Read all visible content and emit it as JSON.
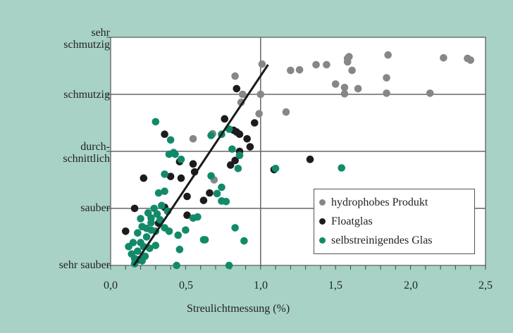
{
  "chart_data": {
    "type": "scatter",
    "title": "",
    "xlabel": "Streulichtmessung (%)",
    "ylabel": "",
    "xlim": [
      0,
      2.5
    ],
    "ylim": [
      0,
      4
    ],
    "x_ticks": [
      "0,0",
      "0,5",
      "1,0",
      "1,5",
      "2,0",
      "2,5"
    ],
    "y_ticks": [
      "sehr sauber",
      "sauber",
      "durch-\nschnittlich",
      "schmutzig",
      "sehr\nschmutzig"
    ],
    "grid": {
      "x_at": [
        1.0
      ],
      "y_at": [
        1,
        2,
        3
      ]
    },
    "legend_position": "lower right",
    "trendline": {
      "x": [
        0.155,
        1.05
      ],
      "y": [
        0,
        3.52
      ],
      "color": "#1a1a1a"
    },
    "series": [
      {
        "name": "hydrophobes Produkt",
        "color": "#858789",
        "points": [
          [
            0.83,
            3.32
          ],
          [
            0.88,
            3.0
          ],
          [
            0.87,
            2.86
          ],
          [
            1.0,
            3.0
          ],
          [
            1.01,
            3.53
          ],
          [
            0.99,
            2.66
          ],
          [
            0.55,
            2.22
          ],
          [
            0.68,
            2.31
          ],
          [
            0.69,
            1.5
          ],
          [
            1.17,
            2.69
          ],
          [
            1.2,
            3.42
          ],
          [
            1.26,
            3.43
          ],
          [
            1.37,
            3.52
          ],
          [
            1.44,
            3.52
          ],
          [
            1.5,
            3.18
          ],
          [
            1.56,
            3.12
          ],
          [
            1.56,
            3.01
          ],
          [
            1.58,
            3.63
          ],
          [
            1.59,
            3.66
          ],
          [
            1.58,
            3.57
          ],
          [
            1.61,
            3.42
          ],
          [
            1.65,
            3.1
          ],
          [
            1.84,
            3.29
          ],
          [
            1.84,
            3.02
          ],
          [
            1.85,
            3.69
          ],
          [
            2.13,
            3.02
          ],
          [
            2.22,
            3.64
          ],
          [
            2.38,
            3.63
          ],
          [
            2.4,
            3.6
          ]
        ]
      },
      {
        "name": "Floatglas",
        "color": "#1c1c1e",
        "points": [
          [
            0.1,
            0.6
          ],
          [
            0.16,
            1.0
          ],
          [
            0.22,
            1.53
          ],
          [
            0.32,
            0.74
          ],
          [
            0.36,
            1.02
          ],
          [
            0.36,
            2.3
          ],
          [
            0.4,
            1.56
          ],
          [
            0.46,
            1.82
          ],
          [
            0.47,
            1.53
          ],
          [
            0.51,
            1.21
          ],
          [
            0.55,
            1.78
          ],
          [
            0.56,
            1.64
          ],
          [
            0.51,
            0.88
          ],
          [
            0.62,
            1.14
          ],
          [
            0.66,
            1.27
          ],
          [
            0.8,
            1.76
          ],
          [
            0.82,
            2.37
          ],
          [
            0.84,
            2.34
          ],
          [
            0.86,
            2.3
          ],
          [
            0.91,
            2.22
          ],
          [
            0.86,
            2.0
          ],
          [
            0.93,
            2.08
          ],
          [
            0.96,
            2.5
          ],
          [
            0.76,
            2.57
          ],
          [
            0.84,
            3.1
          ],
          [
            1.09,
            1.68
          ],
          [
            1.33,
            1.86
          ],
          [
            0.83,
            1.84
          ],
          [
            0.19,
            0.1
          ]
        ]
      },
      {
        "name": "selbstreinigendes Glas",
        "color": "#128a6a",
        "points": [
          [
            0.3,
            2.52
          ],
          [
            0.36,
            1.6
          ],
          [
            0.34,
            1.05
          ],
          [
            0.32,
            1.27
          ],
          [
            0.36,
            1.3
          ],
          [
            0.4,
            2.2
          ],
          [
            0.42,
            1.98
          ],
          [
            0.39,
            1.95
          ],
          [
            0.43,
            1.95
          ],
          [
            0.47,
            1.86
          ],
          [
            0.38,
            0.95
          ],
          [
            0.15,
            0.4
          ],
          [
            0.14,
            0.2
          ],
          [
            0.18,
            0.25
          ],
          [
            0.22,
            0.33
          ],
          [
            0.23,
            0.16
          ],
          [
            0.21,
            0.08
          ],
          [
            0.16,
            0.03
          ],
          [
            0.12,
            0.33
          ],
          [
            0.2,
            0.4
          ],
          [
            0.24,
            0.5
          ],
          [
            0.27,
            0.75
          ],
          [
            0.25,
            0.92
          ],
          [
            0.29,
            1.0
          ],
          [
            0.24,
            0.65
          ],
          [
            0.21,
            0.68
          ],
          [
            0.27,
            0.62
          ],
          [
            0.3,
            0.6
          ],
          [
            0.18,
            0.57
          ],
          [
            0.2,
            0.82
          ],
          [
            0.31,
            0.9
          ],
          [
            0.33,
            0.8
          ],
          [
            0.27,
            0.83
          ],
          [
            0.36,
            0.66
          ],
          [
            0.39,
            0.6
          ],
          [
            0.45,
            0.53
          ],
          [
            0.46,
            0.28
          ],
          [
            0.5,
            0.62
          ],
          [
            0.55,
            0.83
          ],
          [
            0.58,
            0.85
          ],
          [
            0.62,
            0.45
          ],
          [
            0.63,
            0.45
          ],
          [
            0.67,
            1.57
          ],
          [
            0.74,
            1.37
          ],
          [
            0.71,
            1.26
          ],
          [
            0.74,
            1.13
          ],
          [
            0.77,
            1.12
          ],
          [
            0.86,
            1.93
          ],
          [
            0.81,
            2.04
          ],
          [
            0.67,
            2.28
          ],
          [
            0.74,
            2.3
          ],
          [
            0.79,
            2.39
          ],
          [
            0.85,
            1.7
          ],
          [
            0.83,
            0.66
          ],
          [
            0.89,
            0.43
          ],
          [
            0.79,
            0.0
          ],
          [
            0.44,
            0.0
          ],
          [
            1.1,
            1.7
          ],
          [
            1.54,
            1.71
          ],
          [
            0.3,
            0.35
          ],
          [
            0.26,
            0.3
          ],
          [
            0.16,
            0.12
          ]
        ]
      }
    ]
  },
  "axes": {
    "xlabel": "Streulichtmessung (%)",
    "x_ticks": [
      "0,0",
      "0,5",
      "1,0",
      "1,5",
      "2,0",
      "2,5"
    ],
    "y_ticks": [
      {
        "line1": "sehr",
        "line2": "schmutzig"
      },
      {
        "line1": "schmutzig",
        "line2": ""
      },
      {
        "line1": "durch-",
        "line2": "schnittlich"
      },
      {
        "line1": "sauber",
        "line2": ""
      },
      {
        "line1": "sehr sauber",
        "line2": ""
      }
    ]
  },
  "legend": {
    "items": [
      {
        "label": "hydrophobes Produkt",
        "color": "#858789"
      },
      {
        "label": "Floatglas",
        "color": "#1c1c1e"
      },
      {
        "label": "selbstreinigendes Glas",
        "color": "#128a6a"
      }
    ]
  }
}
